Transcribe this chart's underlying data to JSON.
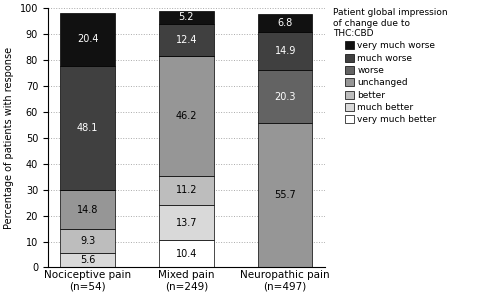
{
  "categories": [
    "Nociceptive pain\n(n=54)",
    "Mixed pain\n(n=249)",
    "Neuropathic pain\n(n=497)"
  ],
  "segments_bottom_to_top": [
    {
      "label": "very much better",
      "color": "#ffffff",
      "values": [
        0.0,
        10.4,
        0.0
      ],
      "text_color": "black"
    },
    {
      "label": "much better",
      "color": "#d9d9d9",
      "values": [
        5.6,
        13.7,
        0.0
      ],
      "text_color": "black"
    },
    {
      "label": "better",
      "color": "#bdbdbd",
      "values": [
        9.3,
        11.2,
        0.0
      ],
      "text_color": "black"
    },
    {
      "label": "unchanged",
      "color": "#969696",
      "values": [
        14.8,
        46.2,
        55.7
      ],
      "text_color": "black"
    },
    {
      "label": "worse",
      "color": "#636363",
      "values": [
        0.0,
        0.0,
        20.3
      ],
      "text_color": "white"
    },
    {
      "label": "much worse",
      "color": "#404040",
      "values": [
        48.1,
        12.4,
        14.9
      ],
      "text_color": "white"
    },
    {
      "label": "very much worse",
      "color": "#111111",
      "values": [
        20.4,
        5.2,
        6.8
      ],
      "text_color": "white"
    }
  ],
  "legend_order": [
    {
      "label": "very much worse",
      "color": "#111111"
    },
    {
      "label": "much worse",
      "color": "#404040"
    },
    {
      "label": "worse",
      "color": "#636363"
    },
    {
      "label": "unchanged",
      "color": "#969696"
    },
    {
      "label": "better",
      "color": "#bdbdbd"
    },
    {
      "label": "much better",
      "color": "#d9d9d9"
    },
    {
      "label": "very much better",
      "color": "#ffffff"
    }
  ],
  "ylabel": "Percentage of patients with response",
  "ylim": [
    0,
    100
  ],
  "yticks": [
    0,
    10,
    20,
    30,
    40,
    50,
    60,
    70,
    80,
    90,
    100
  ],
  "legend_title": "Patient global impression\nof change due to\nTHC:CBD",
  "background_color": "#ffffff",
  "bar_width": 0.55,
  "grid_color": "#aaaaaa"
}
